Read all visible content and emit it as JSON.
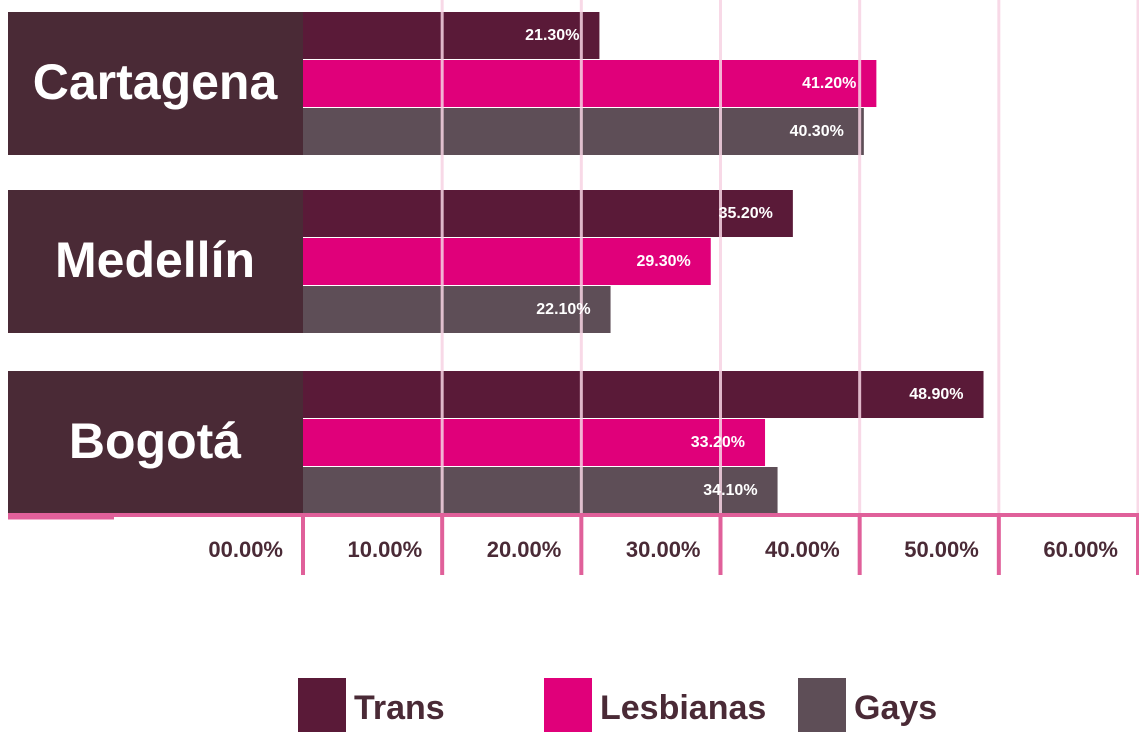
{
  "chart_data": {
    "type": "bar",
    "orientation": "horizontal",
    "categories": [
      "Cartagena",
      "Medellín",
      "Bogotá"
    ],
    "series": [
      {
        "name": "Trans",
        "color": "#5a1a38",
        "values": [
          21.3,
          35.2,
          48.9
        ],
        "value_labels": [
          "21.30%",
          "35.20%",
          "48.90%"
        ]
      },
      {
        "name": "Lesbianas",
        "color": "#e0007a",
        "values": [
          41.2,
          29.3,
          33.2
        ],
        "value_labels": [
          "41.20%",
          "29.30%",
          "33.20%"
        ]
      },
      {
        "name": "Gays",
        "color": "#5e4e57",
        "values": [
          40.3,
          22.1,
          34.1
        ],
        "value_labels": [
          "40.30%",
          "22.10%",
          "34.10%"
        ]
      }
    ],
    "xlim": [
      0,
      60
    ],
    "xticks": [
      {
        "value": 0,
        "label": "00.00%"
      },
      {
        "value": 10,
        "label": "10.00%"
      },
      {
        "value": 20,
        "label": "20.00%"
      },
      {
        "value": 30,
        "label": "30.00%"
      },
      {
        "value": 40,
        "label": "40.00%"
      },
      {
        "value": 50,
        "label": "50.00%"
      },
      {
        "value": 60,
        "label": "60.00%"
      }
    ],
    "grid": true,
    "legend": "bottom"
  }
}
